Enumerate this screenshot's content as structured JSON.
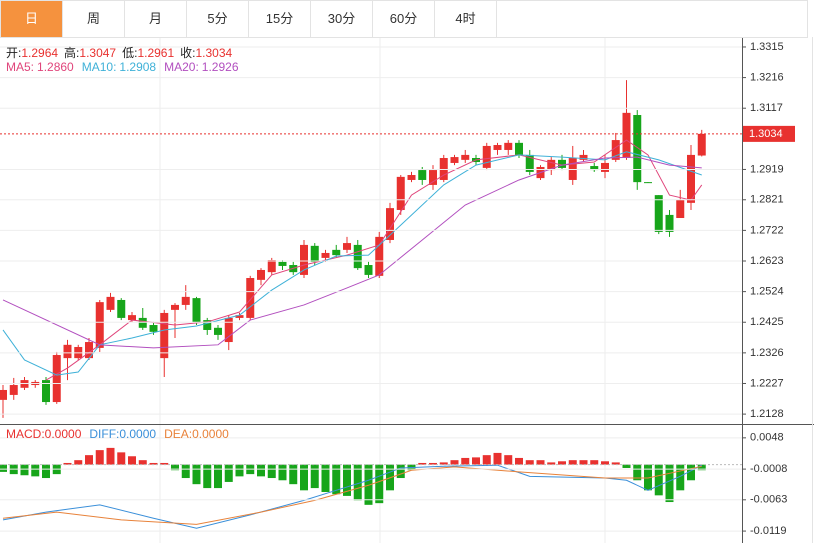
{
  "tabs": [
    "日",
    "周",
    "月",
    "5分",
    "15分",
    "30分",
    "60分",
    "4时"
  ],
  "active_tab": 0,
  "info": [
    {
      "label": "开:",
      "value": "1.2964"
    },
    {
      "label": "高:",
      "value": "1.3047"
    },
    {
      "label": "低:",
      "value": "1.2961"
    },
    {
      "label": "收:",
      "value": "1.3034"
    }
  ],
  "chart_data": [
    {
      "type": "candlestick",
      "up_color": "#e8312f",
      "down_color": "#17a51a",
      "grid": true,
      "ylim": [
        1.2096,
        1.3344
      ],
      "yticks": [
        1.3315,
        1.3216,
        1.3117,
        1.2919,
        1.2821,
        1.2722,
        1.2623,
        1.2524,
        1.2425,
        1.2326,
        1.2227,
        1.2128
      ],
      "open": [
        1.2174,
        1.219,
        1.2213,
        1.2222,
        1.2238,
        1.2167,
        1.2309,
        1.2309,
        1.2309,
        1.2342,
        1.2465,
        1.2497,
        1.2432,
        1.2439,
        1.2416,
        1.2309,
        1.2465,
        1.2481,
        1.2503,
        1.2432,
        1.2407,
        1.2361,
        1.2439,
        1.2439,
        1.2562,
        1.2587,
        1.262,
        1.261,
        1.2578,
        1.2672,
        1.2633,
        1.2659,
        1.2659,
        1.2675,
        1.261,
        1.2575,
        1.2691,
        1.2788,
        1.2885,
        1.2917,
        1.2869,
        1.2885,
        1.294,
        1.295,
        1.2956,
        1.2924,
        1.2982,
        1.2982,
        1.3005,
        1.2966,
        1.2891,
        1.2917,
        1.295,
        1.2885,
        1.295,
        1.293,
        1.2911,
        1.295,
        1.2956,
        1.3095,
        1.2878,
        1.2836,
        1.2772,
        1.2762,
        1.2811,
        1.2964
      ],
      "high": [
        1.2222,
        1.2245,
        1.2248,
        1.2238,
        1.2248,
        1.2329,
        1.2368,
        1.2352,
        1.2374,
        1.2497,
        1.252,
        1.2503,
        1.2458,
        1.2471,
        1.2426,
        1.2465,
        1.2487,
        1.2545,
        1.2507,
        1.2439,
        1.2416,
        1.2448,
        1.2455,
        1.2575,
        1.26,
        1.2633,
        1.2626,
        1.262,
        1.2691,
        1.2681,
        1.2659,
        1.2675,
        1.2701,
        1.2691,
        1.262,
        1.2717,
        1.2811,
        1.2901,
        1.2911,
        1.2927,
        1.2933,
        1.2966,
        1.2966,
        1.2982,
        1.2966,
        1.3005,
        1.3005,
        1.3014,
        1.3014,
        1.2982,
        1.2933,
        1.2959,
        1.2966,
        1.2995,
        1.2982,
        1.294,
        1.2966,
        1.3037,
        1.3208,
        1.3111,
        1.2878,
        1.2836,
        1.2788,
        1.2853,
        1.2998,
        1.3047
      ],
      "low": [
        1.2116,
        1.2174,
        1.2206,
        1.2213,
        1.2158,
        1.2161,
        1.2238,
        1.2303,
        1.2303,
        1.2329,
        1.2458,
        1.2432,
        1.2426,
        1.24,
        1.2384,
        1.2248,
        1.2374,
        1.2465,
        1.2416,
        1.2384,
        1.2368,
        1.2335,
        1.2432,
        1.2432,
        1.2545,
        1.2578,
        1.2594,
        1.2578,
        1.2568,
        1.261,
        1.262,
        1.2633,
        1.2649,
        1.2594,
        1.2568,
        1.2568,
        1.2681,
        1.2772,
        1.2878,
        1.2869,
        1.2853,
        1.2878,
        1.2933,
        1.294,
        1.2933,
        1.2917,
        1.2966,
        1.2966,
        1.2956,
        1.2901,
        1.2885,
        1.2901,
        1.2917,
        1.2869,
        1.2943,
        1.2911,
        1.2891,
        1.2943,
        1.295,
        1.2853,
        1.2875,
        1.271,
        1.2701,
        1.2762,
        1.2788,
        1.2961
      ],
      "close": [
        1.2206,
        1.2222,
        1.2238,
        1.2232,
        1.2167,
        1.2319,
        1.2352,
        1.2345,
        1.2361,
        1.249,
        1.2507,
        1.2439,
        1.2448,
        1.2407,
        1.2394,
        1.2455,
        1.2481,
        1.2507,
        1.2426,
        1.24,
        1.2384,
        1.2439,
        1.2448,
        1.2568,
        1.2594,
        1.2626,
        1.2607,
        1.2587,
        1.2675,
        1.262,
        1.2649,
        1.2642,
        1.2681,
        1.26,
        1.2578,
        1.2701,
        1.2794,
        1.2895,
        1.2901,
        1.2885,
        1.2917,
        1.2956,
        1.2959,
        1.2966,
        1.2943,
        1.2995,
        1.2998,
        1.3005,
        1.2966,
        1.2911,
        1.2927,
        1.295,
        1.2924,
        1.2956,
        1.2966,
        1.2917,
        1.294,
        1.3014,
        1.3102,
        1.2878,
        1.2875,
        1.2717,
        1.2717,
        1.282,
        1.2966,
        1.3034
      ],
      "series": [
        {
          "name": "MA5:",
          "value_label": "1.2860",
          "color": "#e0457b",
          "x": [
            4,
            6,
            9,
            12,
            16,
            19,
            22,
            25,
            28,
            32,
            35,
            38,
            41,
            44,
            48,
            52,
            55,
            58,
            60,
            62,
            64,
            65
          ],
          "values": [
            1.2238,
            1.2277,
            1.2352,
            1.2432,
            1.2416,
            1.2426,
            1.2458,
            1.2578,
            1.261,
            1.2642,
            1.2675,
            1.2836,
            1.2901,
            1.295,
            1.2966,
            1.2933,
            1.2943,
            1.3014,
            1.2966,
            1.2836,
            1.282,
            1.2869
          ]
        },
        {
          "name": "MA10:",
          "value_label": "1.2908",
          "color": "#3fb1d8",
          "x": [
            0,
            2,
            5,
            7,
            9,
            12,
            15,
            18,
            22,
            25,
            28,
            31,
            34,
            37,
            41,
            44,
            48,
            52,
            56,
            58,
            61,
            65
          ],
          "values": [
            1.24,
            1.2303,
            1.2254,
            1.2264,
            1.2352,
            1.2374,
            1.24,
            1.2413,
            1.2448,
            1.2529,
            1.2594,
            1.2639,
            1.2642,
            1.2739,
            1.2869,
            1.2933,
            1.2966,
            1.2959,
            1.295,
            1.2976,
            1.295,
            1.2901
          ]
        },
        {
          "name": "MA20:",
          "value_label": "1.2926",
          "color": "#b24fbf",
          "x": [
            0,
            9,
            14,
            20,
            23,
            28,
            32,
            35,
            39,
            43,
            48,
            52,
            56,
            59,
            62,
            65
          ],
          "values": [
            1.2497,
            1.2352,
            1.2342,
            1.2352,
            1.2432,
            1.2481,
            1.2536,
            1.2578,
            1.2691,
            1.2804,
            1.2885,
            1.2933,
            1.2956,
            1.2959,
            1.2933,
            1.2924
          ]
        }
      ]
    },
    {
      "type": "macd",
      "name": "MACD:",
      "value_label": "0.0000",
      "up_color": "#e8312f",
      "down_color": "#17a51a",
      "ylim": [
        -0.0135,
        0.0071
      ],
      "yticks": [
        0.0048,
        -0.0008,
        -0.0063,
        -0.0119
      ],
      "values": [
        -0.0013,
        -0.0017,
        -0.0019,
        -0.0021,
        -0.0024,
        -0.0017,
        0.0003,
        0.0008,
        0.0017,
        0.0026,
        0.003,
        0.0022,
        0.0015,
        0.0008,
        0.0003,
        0.0003,
        -0.001,
        -0.0024,
        -0.0035,
        -0.0042,
        -0.0042,
        -0.0031,
        -0.0021,
        -0.0017,
        -0.0021,
        -0.0024,
        -0.0028,
        -0.0035,
        -0.0046,
        -0.0042,
        -0.0049,
        -0.0053,
        -0.0056,
        -0.0064,
        -0.0072,
        -0.0069,
        -0.0046,
        -0.0024,
        -0.001,
        0.0003,
        0.0003,
        0.0004,
        0.0008,
        0.0012,
        0.0013,
        0.0017,
        0.0021,
        0.0017,
        0.0012,
        0.0008,
        0.0008,
        0.0004,
        0.0006,
        0.0008,
        0.0008,
        0.0008,
        0.0006,
        0.0004,
        -0.0006,
        -0.0028,
        -0.0046,
        -0.0055,
        -0.0067,
        -0.0046,
        -0.0028,
        -0.001
      ],
      "series": [
        {
          "name": "DIFF:",
          "value_label": "0.0000",
          "color": "#3a8fd9",
          "x": [
            0,
            4,
            9,
            14,
            18,
            23,
            28,
            31,
            34,
            37,
            41,
            46,
            49,
            56,
            58,
            60,
            63,
            65
          ],
          "values": [
            -0.0099,
            -0.0085,
            -0.0072,
            -0.0096,
            -0.0114,
            -0.009,
            -0.0064,
            -0.0046,
            -0.0028,
            -0.0006,
            -0.0003,
            -0.0001,
            -0.0021,
            -0.0024,
            -0.0028,
            -0.0046,
            -0.0021,
            -0.0001
          ]
        },
        {
          "name": "DEA:",
          "value_label": "0.0000",
          "color": "#e8823a",
          "x": [
            0,
            5,
            11,
            18,
            24,
            29,
            34,
            38,
            42,
            48,
            56,
            60,
            65
          ],
          "values": [
            -0.0096,
            -0.0085,
            -0.0099,
            -0.0107,
            -0.0085,
            -0.0064,
            -0.0037,
            -0.001,
            -0.0004,
            -0.0013,
            -0.0024,
            -0.0024,
            -0.0003
          ]
        }
      ]
    }
  ]
}
